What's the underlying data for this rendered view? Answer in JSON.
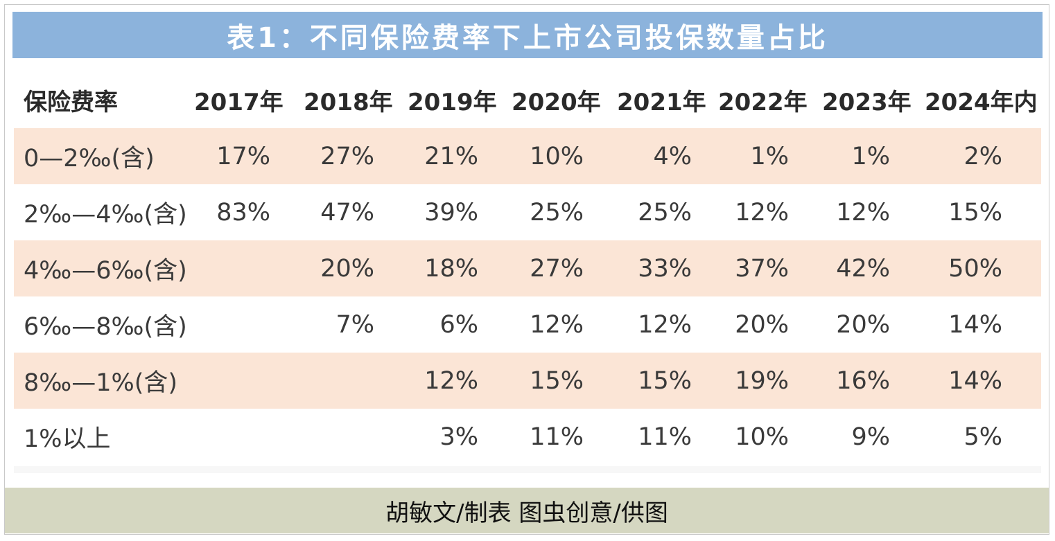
{
  "title": "表1：不同保险费率下上市公司投保数量占比",
  "footer": "胡敏文/制表 图虫创意/供图",
  "colors": {
    "title_bar": "#8cb3dc",
    "stripe": "#fbe5d6",
    "footer_bar": "#d5d7c1"
  },
  "chart_data": {
    "type": "table",
    "columns": [
      "保险费率",
      "2017年",
      "2018年",
      "2019年",
      "2020年",
      "2021年",
      "2022年",
      "2023年",
      "2024年内"
    ],
    "rows": [
      {
        "label": "0—2‰(含)",
        "values": [
          "17%",
          "27%",
          "21%",
          "10%",
          "4%",
          "1%",
          "1%",
          "2%"
        ]
      },
      {
        "label": "2‰—4‰(含)",
        "values": [
          "83%",
          "47%",
          "39%",
          "25%",
          "25%",
          "12%",
          "12%",
          "15%"
        ]
      },
      {
        "label": "4‰—6‰(含)",
        "values": [
          "",
          "20%",
          "18%",
          "27%",
          "33%",
          "37%",
          "42%",
          "50%"
        ]
      },
      {
        "label": "6‰—8‰(含)",
        "values": [
          "",
          "7%",
          "6%",
          "12%",
          "12%",
          "20%",
          "20%",
          "14%"
        ]
      },
      {
        "label": "8‰—1%(含)",
        "values": [
          "",
          "",
          "12%",
          "15%",
          "15%",
          "19%",
          "16%",
          "14%"
        ]
      },
      {
        "label": "1%以上",
        "values": [
          "",
          "",
          "3%",
          "11%",
          "11%",
          "10%",
          "9%",
          "5%"
        ]
      }
    ]
  }
}
